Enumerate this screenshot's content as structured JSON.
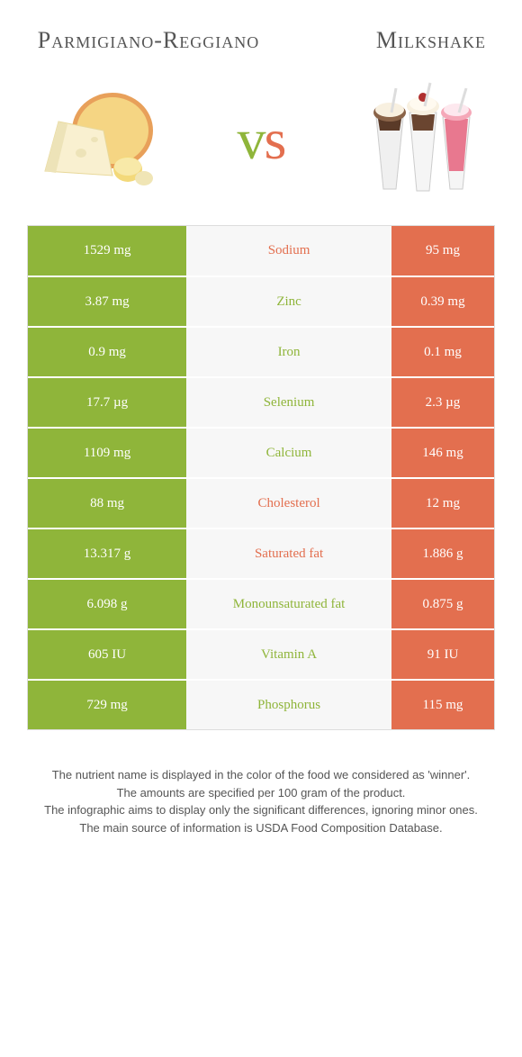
{
  "header": {
    "left_title": "Parmigiano-Reggiano",
    "right_title": "Milkshake",
    "vs_v": "v",
    "vs_s": "s"
  },
  "colors": {
    "green": "#8fb53a",
    "orange": "#e36f4f",
    "mid_bg": "#f7f7f7"
  },
  "rows": [
    {
      "left": "1529 mg",
      "label": "Sodium",
      "right": "95 mg",
      "label_color": "#e36f4f"
    },
    {
      "left": "3.87 mg",
      "label": "Zinc",
      "right": "0.39 mg",
      "label_color": "#8fb53a"
    },
    {
      "left": "0.9 mg",
      "label": "Iron",
      "right": "0.1 mg",
      "label_color": "#8fb53a"
    },
    {
      "left": "17.7 µg",
      "label": "Selenium",
      "right": "2.3 µg",
      "label_color": "#8fb53a"
    },
    {
      "left": "1109 mg",
      "label": "Calcium",
      "right": "146 mg",
      "label_color": "#8fb53a"
    },
    {
      "left": "88 mg",
      "label": "Cholesterol",
      "right": "12 mg",
      "label_color": "#e36f4f"
    },
    {
      "left": "13.317 g",
      "label": "Saturated fat",
      "right": "1.886 g",
      "label_color": "#e36f4f"
    },
    {
      "left": "6.098 g",
      "label": "Monounsaturated fat",
      "right": "0.875 g",
      "label_color": "#8fb53a"
    },
    {
      "left": "605 IU",
      "label": "Vitamin A",
      "right": "91 IU",
      "label_color": "#8fb53a"
    },
    {
      "left": "729 mg",
      "label": "Phosphorus",
      "right": "115 mg",
      "label_color": "#8fb53a"
    }
  ],
  "footer": {
    "line1": "The nutrient name is displayed in the color of the food we considered as 'winner'.",
    "line2": "The amounts are specified per 100 gram of the product.",
    "line3": "The infographic aims to display only the significant differences, ignoring minor ones.",
    "line4": "The main source of information is USDA Food Composition Database."
  }
}
